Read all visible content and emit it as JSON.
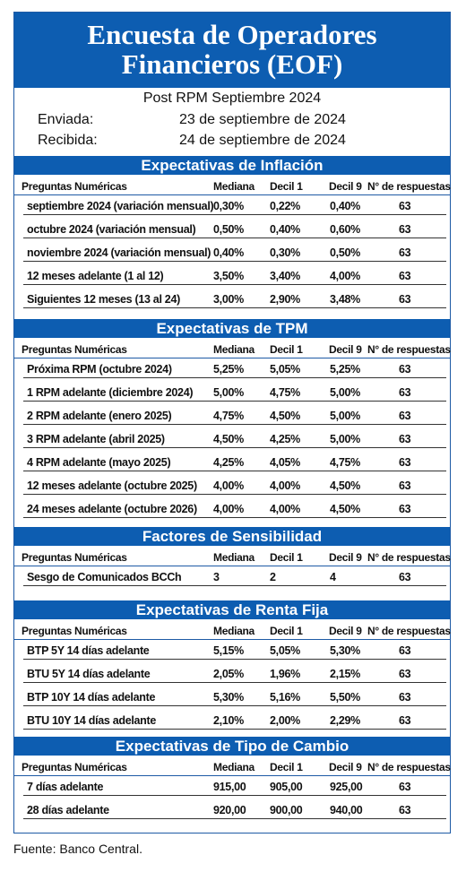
{
  "title_lines": [
    "Encuesta de Operadores",
    "Financieros (EOF)"
  ],
  "subtitle": "Post RPM Septiembre 2024",
  "sent_label": "Enviada:",
  "sent_date": "23 de septiembre de 2024",
  "received_label": "Recibida:",
  "received_date": "24 de septiembre de 2024",
  "column_headers": [
    "Preguntas Numéricas",
    "Mediana",
    "Decil 1",
    "Decil 9",
    "N° de respuestas"
  ],
  "sections": [
    {
      "title": "Expectativas de Inflación",
      "rows": [
        [
          "septiembre 2024 (variación mensual)",
          "0,30%",
          "0,22%",
          "0,40%",
          "63"
        ],
        [
          "octubre 2024 (variación mensual)",
          "0,50%",
          "0,40%",
          "0,60%",
          "63"
        ],
        [
          "noviembre 2024 (variación mensual)",
          "0,40%",
          "0,30%",
          "0,50%",
          "63"
        ],
        [
          "12 meses adelante (1 al 12)",
          "3,50%",
          "3,40%",
          "4,00%",
          "63"
        ],
        [
          "Siguientes 12 meses (13 al 24)",
          "3,00%",
          "2,90%",
          "3,48%",
          "63"
        ]
      ]
    },
    {
      "title": "Expectativas de TPM",
      "rows": [
        [
          "Próxima RPM (octubre 2024)",
          "5,25%",
          "5,05%",
          "5,25%",
          "63"
        ],
        [
          "1 RPM adelante (diciembre 2024)",
          "5,00%",
          "4,75%",
          "5,00%",
          "63"
        ],
        [
          "2 RPM adelante (enero 2025)",
          "4,75%",
          "4,50%",
          "5,00%",
          "63"
        ],
        [
          "3 RPM adelante (abril 2025)",
          "4,50%",
          "4,25%",
          "5,00%",
          "63"
        ],
        [
          "4 RPM adelante (mayo 2025)",
          "4,25%",
          "4,05%",
          "4,75%",
          "63"
        ],
        [
          "12 meses adelante (octubre 2025)",
          "4,00%",
          "4,00%",
          "4,50%",
          "63"
        ],
        [
          "24 meses adelante (octubre 2026)",
          "4,00%",
          "4,00%",
          "4,50%",
          "63"
        ]
      ]
    },
    {
      "title": "Factores de Sensibilidad",
      "rows": [
        [
          "Sesgo de Comunicados BCCh",
          "3",
          "2",
          "4",
          "63"
        ]
      ]
    },
    {
      "title": "Expectativas de Renta Fija",
      "rows": [
        [
          "BTP 5Y 14 días adelante",
          "5,15%",
          "5,05%",
          "5,30%",
          "63"
        ],
        [
          "BTU 5Y 14 días adelante",
          "2,05%",
          "1,96%",
          "2,15%",
          "63"
        ],
        [
          "BTP 10Y 14 días adelante",
          "5,30%",
          "5,16%",
          "5,50%",
          "63"
        ],
        [
          "BTU 10Y 14 días adelante",
          "2,10%",
          "2,00%",
          "2,29%",
          "63"
        ]
      ]
    },
    {
      "title": "Expectativas de Tipo de Cambio",
      "rows": [
        [
          "7 días adelante",
          "915,00",
          "905,00",
          "925,00",
          "63"
        ],
        [
          "28 días adelante",
          "920,00",
          "900,00",
          "940,00",
          "63"
        ]
      ]
    }
  ],
  "footer": "Fuente: Banco Central."
}
